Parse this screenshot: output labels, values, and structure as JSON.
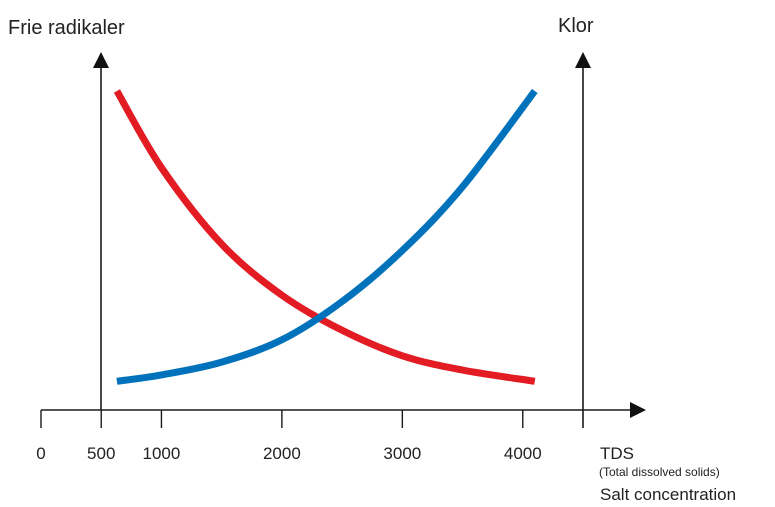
{
  "chart_data": {
    "type": "line",
    "left_axis_label": "Frie radikaler",
    "right_axis_label": "Klor",
    "xlabel": "TDS",
    "xlabel_sub": "(Total dissolved solids)",
    "xlabel_extra": "Salt concentration",
    "x_ticks": [
      0,
      500,
      1000,
      2000,
      3000,
      4000
    ],
    "xlim": [
      0,
      4500
    ],
    "ylim": [
      0,
      100
    ],
    "y_ticks_shown": false,
    "grid": false,
    "legend": "none",
    "series": [
      {
        "key": "frie-radikaler",
        "color": "#e31b23",
        "x": [
          630,
          1000,
          1500,
          2000,
          2500,
          3000,
          3500,
          4100
        ],
        "y": [
          100,
          76,
          52,
          36,
          25,
          17,
          12.5,
          9
        ]
      },
      {
        "key": "klor",
        "color": "#0072bc",
        "x": [
          630,
          1000,
          1500,
          2000,
          2500,
          3000,
          3500,
          4100
        ],
        "y": [
          9,
          11,
          15,
          22,
          34,
          50,
          70,
          100
        ]
      }
    ]
  }
}
